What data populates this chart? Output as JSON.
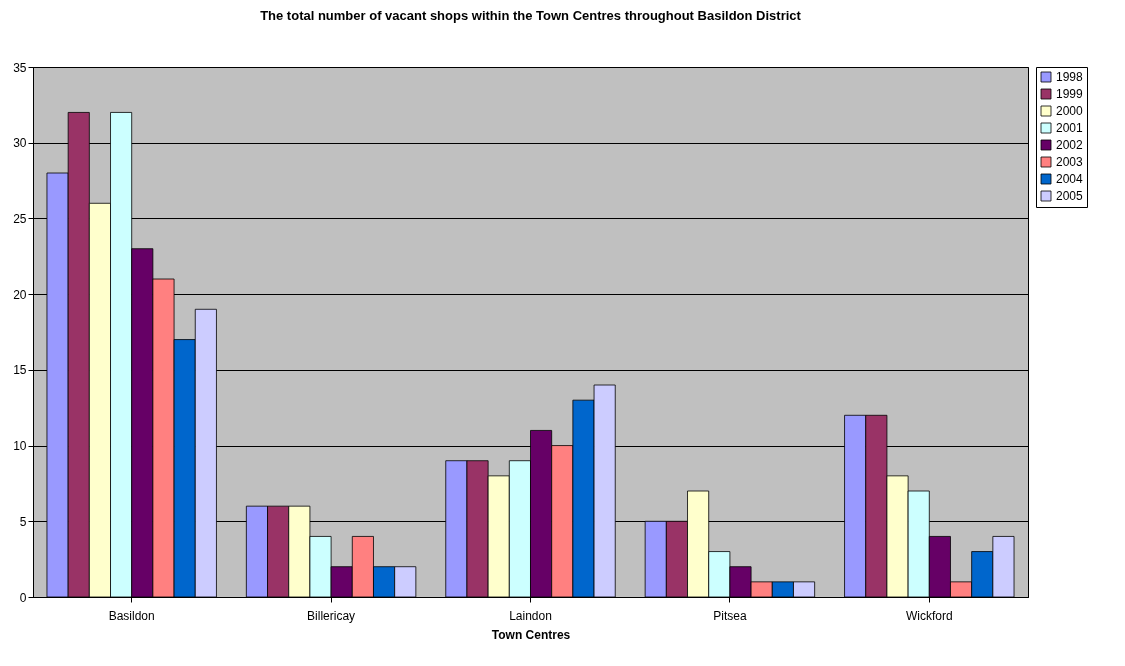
{
  "chart_data": {
    "type": "bar",
    "title": "The total number of vacant shops within the Town Centres throughout Basildon District",
    "xlabel": "Town Centres",
    "categories": [
      "Basildon",
      "Billericay",
      "Laindon",
      "Pitsea",
      "Wickford"
    ],
    "series": [
      {
        "name": "1998",
        "color": "#9999ff",
        "values": [
          28,
          6,
          9,
          5,
          12
        ]
      },
      {
        "name": "1999",
        "color": "#993366",
        "values": [
          32,
          6,
          9,
          5,
          12
        ]
      },
      {
        "name": "2000",
        "color": "#ffffcc",
        "values": [
          26,
          6,
          8,
          7,
          8
        ]
      },
      {
        "name": "2001",
        "color": "#ccffff",
        "values": [
          32,
          4,
          9,
          3,
          7
        ]
      },
      {
        "name": "2002",
        "color": "#660066",
        "values": [
          23,
          2,
          11,
          2,
          4
        ]
      },
      {
        "name": "2003",
        "color": "#ff8080",
        "values": [
          21,
          4,
          10,
          1,
          1
        ]
      },
      {
        "name": "2004",
        "color": "#0066cc",
        "values": [
          17,
          2,
          13,
          1,
          3
        ]
      },
      {
        "name": "2005",
        "color": "#ccccff",
        "values": [
          19,
          2,
          14,
          1,
          4
        ]
      }
    ],
    "ylim": [
      0,
      35
    ],
    "yticks": [
      0,
      5,
      10,
      15,
      20,
      25,
      30,
      35
    ],
    "grid": "y",
    "legend": "right"
  }
}
